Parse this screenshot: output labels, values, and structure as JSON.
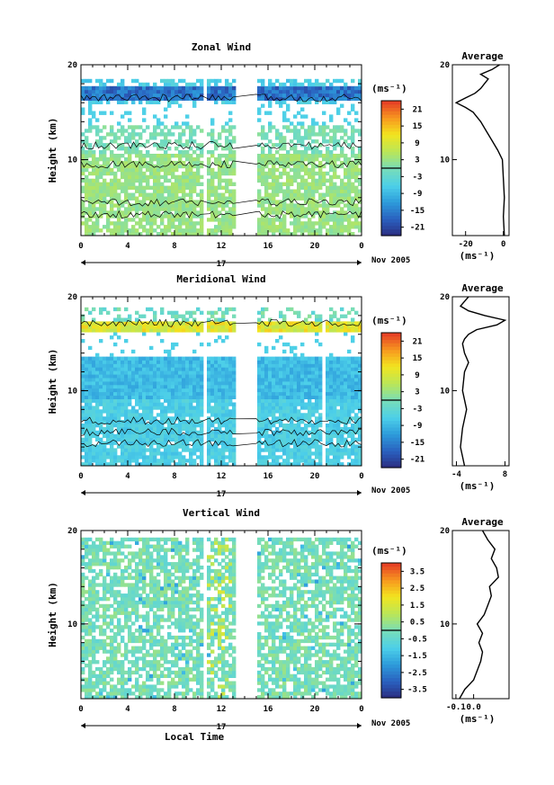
{
  "chart_data": [
    {
      "type": "heatmap",
      "title": "Zonal Wind",
      "ylabel": "Height (km)",
      "xlabel": "",
      "x_ticks": [
        "0",
        "4",
        "8",
        "12",
        "16",
        "20",
        "0"
      ],
      "y_ticks": [
        "20",
        "10"
      ],
      "xlim": [
        0,
        24
      ],
      "ylim": [
        2,
        20
      ],
      "date_label": "17",
      "month_label": "Nov 2005",
      "colorbar": {
        "unit": "(ms⁻¹)",
        "ticks": [
          "21",
          "15",
          "9",
          "3",
          "-3",
          "-9",
          "-15",
          "-21"
        ],
        "min": -24,
        "max": 24
      },
      "gaps_hours": [
        [
          10.4,
          10.9
        ],
        [
          13.2,
          15.0
        ]
      ],
      "average": {
        "title": "Average",
        "unit": "(ms⁻¹)",
        "x_ticks": [
          "-20",
          "0"
        ],
        "xlim": [
          -27,
          3
        ],
        "y_ticks": [
          "20",
          "10"
        ],
        "height_km": [
          2,
          4,
          6,
          8,
          10,
          11,
          12,
          13,
          14,
          15,
          15.5,
          16,
          16.5,
          17,
          17.5,
          18,
          18.5,
          19,
          19.5,
          20
        ],
        "values": [
          0.5,
          0,
          0.5,
          0,
          -0.5,
          -3,
          -6,
          -9,
          -12,
          -16,
          -20,
          -25,
          -20,
          -15,
          -12,
          -10,
          -8,
          -12,
          -6,
          -2
        ]
      }
    },
    {
      "type": "heatmap",
      "title": "Meridional Wind",
      "ylabel": "Height (km)",
      "xlabel": "",
      "x_ticks": [
        "0",
        "4",
        "8",
        "12",
        "16",
        "20",
        "0"
      ],
      "y_ticks": [
        "20",
        "10"
      ],
      "xlim": [
        0,
        24
      ],
      "ylim": [
        2,
        20
      ],
      "date_label": "17",
      "month_label": "Nov 2005",
      "colorbar": {
        "unit": "(ms⁻¹)",
        "ticks": [
          "21",
          "15",
          "9",
          "3",
          "-3",
          "-9",
          "-15",
          "-21"
        ],
        "min": -24,
        "max": 24
      },
      "gaps_hours": [
        [
          10.4,
          10.9
        ],
        [
          13.2,
          15.0
        ],
        [
          20.6,
          20.9
        ]
      ],
      "average": {
        "title": "Average",
        "unit": "(ms⁻¹)",
        "x_ticks": [
          "-4",
          "8"
        ],
        "xlim": [
          -5,
          9
        ],
        "y_ticks": [
          "20",
          "10"
        ],
        "height_km": [
          2,
          4,
          6,
          8,
          10,
          12,
          13,
          14,
          15,
          15.5,
          16,
          16.5,
          17,
          17.5,
          18,
          18.5,
          19,
          19.5,
          20
        ],
        "values": [
          -2,
          -3,
          -2.5,
          -1.5,
          -2.5,
          -2,
          -1,
          -2,
          -2.5,
          -2,
          -1,
          1,
          6,
          8,
          3,
          -1,
          -3,
          -2,
          -1
        ]
      }
    },
    {
      "type": "heatmap",
      "title": "Vertical Wind",
      "ylabel": "Height (km)",
      "xlabel": "Local Time",
      "x_ticks": [
        "0",
        "4",
        "8",
        "12",
        "16",
        "20",
        "0"
      ],
      "y_ticks": [
        "20",
        "10"
      ],
      "xlim": [
        0,
        24
      ],
      "ylim": [
        2,
        20
      ],
      "date_label": "17",
      "month_label": "Nov 2005",
      "colorbar": {
        "unit": "(ms⁻¹)",
        "ticks": [
          "3.5",
          "2.5",
          "1.5",
          "0.5",
          "-0.5",
          "-1.5",
          "-2.5",
          "-3.5"
        ],
        "min": -4,
        "max": 4
      },
      "gaps_hours": [
        [
          10.4,
          10.9
        ],
        [
          13.2,
          15.0
        ]
      ],
      "average": {
        "title": "Average",
        "unit": "(ms⁻¹)",
        "x_ticks": [
          "-0.1",
          "0.0"
        ],
        "xlim": [
          -0.12,
          0.2
        ],
        "y_ticks": [
          "20",
          "10"
        ],
        "height_km": [
          2,
          3,
          4,
          5,
          6,
          7,
          8,
          9,
          10,
          11,
          12,
          13,
          14,
          15,
          16,
          17,
          18,
          19,
          20
        ],
        "values": [
          -0.08,
          -0.05,
          0.0,
          0.02,
          0.04,
          0.05,
          0.03,
          0.05,
          0.02,
          0.06,
          0.08,
          0.1,
          0.09,
          0.14,
          0.13,
          0.1,
          0.12,
          0.08,
          0.05
        ]
      }
    }
  ]
}
